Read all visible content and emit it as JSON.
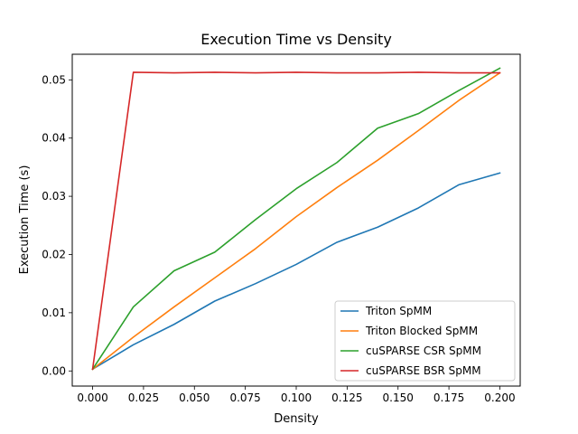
{
  "chart_data": {
    "type": "line",
    "title": "Execution Time vs Density",
    "xlabel": "Density",
    "ylabel": "Execution Time (s)",
    "xlim": [
      -0.01,
      0.21
    ],
    "ylim": [
      -0.0026,
      0.0544
    ],
    "xticks": [
      0.0,
      0.025,
      0.05,
      0.075,
      0.1,
      0.125,
      0.15,
      0.175,
      0.2
    ],
    "xtick_labels": [
      "0.000",
      "0.025",
      "0.050",
      "0.075",
      "0.100",
      "0.125",
      "0.150",
      "0.175",
      "0.200"
    ],
    "yticks": [
      0.0,
      0.01,
      0.02,
      0.03,
      0.04,
      0.05
    ],
    "ytick_labels": [
      "0.00",
      "0.01",
      "0.02",
      "0.03",
      "0.04",
      "0.05"
    ],
    "grid": false,
    "legend_position": "lower-right",
    "x": [
      0.0,
      0.02,
      0.04,
      0.06,
      0.08,
      0.1,
      0.12,
      0.14,
      0.16,
      0.18,
      0.2
    ],
    "series": [
      {
        "name": "Triton SpMM",
        "color": "#1f77b4",
        "values": [
          0.0003,
          0.0045,
          0.008,
          0.012,
          0.015,
          0.0183,
          0.0221,
          0.0247,
          0.028,
          0.032,
          0.034
        ]
      },
      {
        "name": "Triton Blocked SpMM",
        "color": "#ff7f0e",
        "values": [
          0.0003,
          0.0058,
          0.011,
          0.016,
          0.021,
          0.0265,
          0.0315,
          0.0362,
          0.0413,
          0.0465,
          0.0512
        ]
      },
      {
        "name": "cuSPARSE CSR SpMM",
        "color": "#2ca02c",
        "values": [
          0.0003,
          0.011,
          0.0172,
          0.0204,
          0.026,
          0.0313,
          0.0358,
          0.0417,
          0.0442,
          0.0482,
          0.052
        ]
      },
      {
        "name": "cuSPARSE BSR SpMM",
        "color": "#d62728",
        "values": [
          0.0003,
          0.0513,
          0.0512,
          0.0513,
          0.0512,
          0.0513,
          0.0512,
          0.0512,
          0.0513,
          0.0512,
          0.0512
        ]
      }
    ]
  }
}
